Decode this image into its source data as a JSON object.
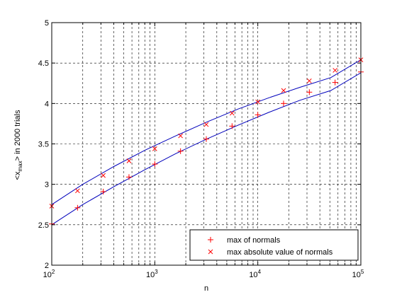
{
  "chart_data": {
    "type": "scatter",
    "title": "",
    "xlabel": "n",
    "ylabel_main": "<x",
    "ylabel_sub": "max",
    "ylabel_rest": "> in 2000 trials",
    "xscale": "log",
    "xlim": [
      100,
      100000
    ],
    "ylim": [
      2,
      5
    ],
    "y_ticks": [
      "2",
      "2.5",
      "3",
      "3.5",
      "4",
      "4.5",
      "5"
    ],
    "x_ticks": [
      {
        "value": 100,
        "base": "10",
        "exp": "2"
      },
      {
        "value": 1000,
        "base": "10",
        "exp": "3"
      },
      {
        "value": 10000,
        "base": "10",
        "exp": "4"
      },
      {
        "value": 100000,
        "base": "10",
        "exp": "5"
      }
    ],
    "grid": true,
    "legend_position": "bottom-right",
    "series": [
      {
        "name": "max of normals",
        "marker": "+",
        "color": "#ff0000",
        "x": [
          100,
          178,
          316,
          562,
          1000,
          1778,
          3162,
          5623,
          10000,
          17783,
          31623,
          56234,
          100000
        ],
        "y": [
          2.51,
          2.71,
          2.91,
          3.09,
          3.25,
          3.41,
          3.56,
          3.72,
          3.86,
          4.0,
          4.14,
          4.26,
          4.39
        ],
        "fit": [
          2.5,
          2.75,
          2.97,
          3.18,
          3.38,
          3.56,
          3.73,
          3.89,
          4.04,
          4.16,
          4.29,
          4.38
        ]
      },
      {
        "name": "max absolute value of normals",
        "marker": "x",
        "color": "#ff0000",
        "x": [
          100,
          178,
          316,
          562,
          1000,
          1778,
          3162,
          5623,
          10000,
          17783,
          31623,
          56234,
          100000
        ],
        "y": [
          2.73,
          2.92,
          3.11,
          3.29,
          3.44,
          3.6,
          3.74,
          3.88,
          4.02,
          4.16,
          4.28,
          4.41,
          4.54
        ],
        "fit": [
          2.75,
          3.0,
          3.22,
          3.42,
          3.6,
          3.77,
          3.93,
          4.07,
          4.2,
          4.32,
          4.44,
          4.54
        ]
      }
    ],
    "fit_x": [
      100,
      200,
      400,
      800,
      1600,
      3200,
      6400,
      12800,
      25600,
      51200,
      102400,
      100000
    ],
    "fit_color": "#0000bb"
  }
}
